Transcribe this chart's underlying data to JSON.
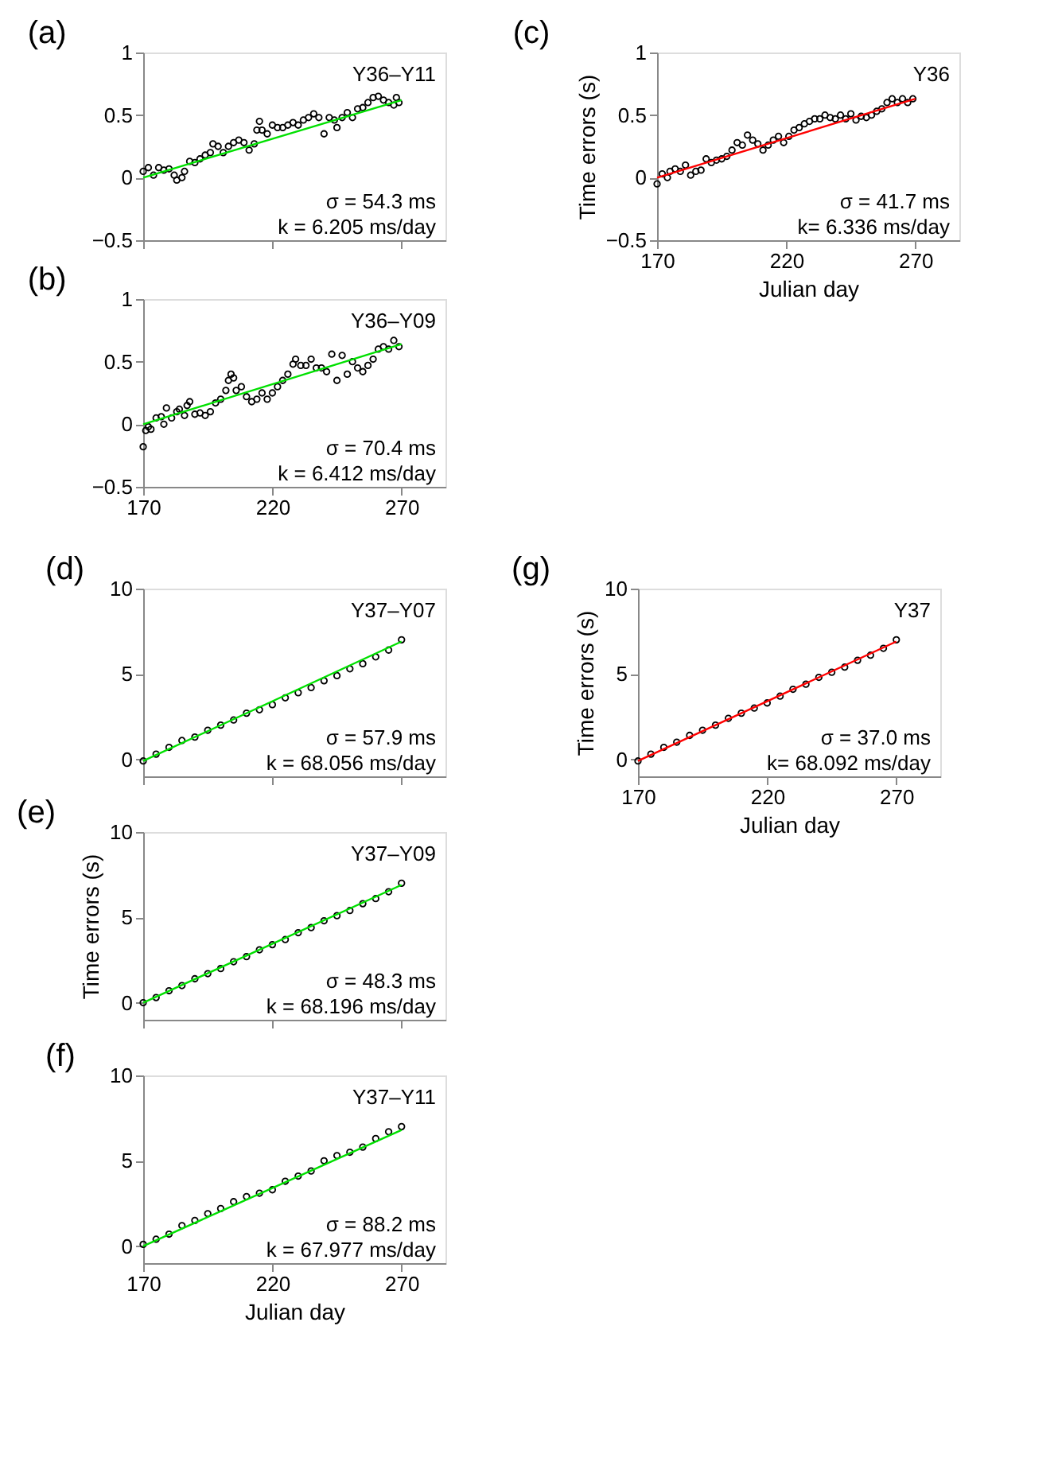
{
  "chart_data": [
    {
      "type": "scatter",
      "title": "(a)",
      "xlim": [
        170,
        287
      ],
      "xticks": [
        170,
        220,
        270
      ],
      "ylim": [
        -0.5,
        1
      ],
      "yticks": [
        -0.5,
        0,
        0.5,
        1
      ],
      "tick_labels": "y",
      "grid": false,
      "annotations": [
        "Y36–Y11",
        "σ = 54.3 ms",
        "k = 6.205 ms/day"
      ],
      "series": [
        {
          "marker": "circle",
          "color": "#000000",
          "x": [
            170,
            172,
            174,
            176,
            178,
            180,
            182,
            183,
            185,
            186,
            188,
            190,
            192,
            194,
            196,
            197,
            199,
            201,
            203,
            205,
            207,
            209,
            211,
            213,
            214,
            215,
            216,
            218,
            220,
            222,
            224,
            226,
            228,
            230,
            232,
            234,
            236,
            238,
            240,
            242,
            244,
            245,
            247,
            249,
            251,
            253,
            255,
            257,
            259,
            261,
            263,
            265,
            267,
            268,
            269
          ],
          "values": [
            0.05,
            0.08,
            0.02,
            0.08,
            0.06,
            0.07,
            0.02,
            -0.02,
            0.0,
            0.05,
            0.13,
            0.12,
            0.15,
            0.18,
            0.2,
            0.27,
            0.25,
            0.2,
            0.25,
            0.28,
            0.3,
            0.28,
            0.22,
            0.27,
            0.38,
            0.45,
            0.38,
            0.35,
            0.42,
            0.4,
            0.4,
            0.42,
            0.44,
            0.42,
            0.46,
            0.48,
            0.51,
            0.48,
            0.35,
            0.48,
            0.46,
            0.4,
            0.48,
            0.52,
            0.48,
            0.55,
            0.56,
            0.6,
            0.64,
            0.65,
            0.62,
            0.6,
            0.58,
            0.64,
            0.6
          ]
        },
        {
          "type": "line",
          "color": "#00e000",
          "x": [
            170,
            270
          ],
          "values": [
            0.0,
            0.62
          ]
        }
      ]
    },
    {
      "type": "scatter",
      "title": "(b)",
      "xlim": [
        170,
        287
      ],
      "xticks": [
        170,
        220,
        270
      ],
      "ylim": [
        -0.5,
        1
      ],
      "yticks": [
        -0.5,
        0,
        0.5,
        1
      ],
      "grid": false,
      "annotations": [
        "Y36–Y09",
        "σ = 70.4 ms",
        "k = 6.412 ms/day"
      ],
      "series": [
        {
          "marker": "circle",
          "color": "#000000",
          "x": [
            170,
            171,
            172,
            173,
            175,
            177,
            178,
            179,
            181,
            183,
            184,
            186,
            187,
            188,
            190,
            192,
            194,
            196,
            198,
            200,
            202,
            203,
            204,
            205,
            206,
            208,
            210,
            212,
            214,
            216,
            218,
            220,
            222,
            224,
            226,
            228,
            229,
            231,
            233,
            235,
            237,
            239,
            241,
            243,
            245,
            247,
            249,
            251,
            253,
            255,
            257,
            259,
            261,
            263,
            265,
            267,
            269
          ],
          "values": [
            -0.18,
            -0.05,
            -0.02,
            -0.04,
            0.05,
            0.06,
            0.0,
            0.13,
            0.05,
            0.1,
            0.12,
            0.07,
            0.15,
            0.18,
            0.08,
            0.09,
            0.07,
            0.1,
            0.17,
            0.2,
            0.27,
            0.35,
            0.4,
            0.37,
            0.27,
            0.3,
            0.22,
            0.18,
            0.2,
            0.25,
            0.2,
            0.25,
            0.3,
            0.35,
            0.4,
            0.48,
            0.52,
            0.47,
            0.47,
            0.52,
            0.45,
            0.45,
            0.42,
            0.56,
            0.35,
            0.55,
            0.4,
            0.5,
            0.45,
            0.42,
            0.47,
            0.52,
            0.6,
            0.62,
            0.6,
            0.67,
            0.62
          ]
        },
        {
          "type": "line",
          "color": "#00e000",
          "x": [
            170,
            270
          ],
          "values": [
            0.0,
            0.64
          ]
        }
      ]
    },
    {
      "type": "scatter",
      "title": "(c)",
      "xlabel": "Julian day",
      "ylabel": "Time errors (s)",
      "xlim": [
        170,
        287
      ],
      "xticks": [
        170,
        220,
        270
      ],
      "ylim": [
        -0.5,
        1
      ],
      "yticks": [
        -0.5,
        0,
        0.5,
        1
      ],
      "grid": false,
      "annotations": [
        "Y36",
        "σ = 41.7 ms",
        "k= 6.336 ms/day"
      ],
      "series": [
        {
          "marker": "circle",
          "color": "#000000",
          "x": [
            170,
            172,
            174,
            175,
            177,
            179,
            181,
            183,
            185,
            187,
            189,
            191,
            193,
            195,
            197,
            199,
            201,
            203,
            205,
            207,
            209,
            211,
            213,
            215,
            217,
            219,
            221,
            223,
            225,
            227,
            229,
            231,
            233,
            235,
            237,
            239,
            241,
            243,
            245,
            247,
            249,
            251,
            253,
            255,
            257,
            259,
            261,
            263,
            265,
            267,
            269
          ],
          "values": [
            -0.05,
            0.03,
            0.0,
            0.05,
            0.07,
            0.05,
            0.1,
            0.02,
            0.05,
            0.06,
            0.15,
            0.12,
            0.14,
            0.15,
            0.17,
            0.22,
            0.28,
            0.26,
            0.34,
            0.3,
            0.27,
            0.22,
            0.26,
            0.3,
            0.33,
            0.28,
            0.33,
            0.38,
            0.4,
            0.43,
            0.45,
            0.47,
            0.47,
            0.5,
            0.48,
            0.47,
            0.5,
            0.47,
            0.51,
            0.46,
            0.49,
            0.48,
            0.5,
            0.53,
            0.55,
            0.6,
            0.63,
            0.6,
            0.63,
            0.6,
            0.63
          ]
        },
        {
          "type": "line",
          "color": "#ff0000",
          "x": [
            170,
            270
          ],
          "values": [
            0.0,
            0.63
          ]
        }
      ]
    },
    {
      "type": "scatter",
      "title": "(d)",
      "xlim": [
        170,
        287
      ],
      "xticks": [
        170,
        220,
        270
      ],
      "ylim": [
        -1,
        10
      ],
      "yticks": [
        0,
        5,
        10
      ],
      "tick_labels": "y",
      "grid": false,
      "annotations": [
        "Y37–Y07",
        "σ = 57.9 ms",
        "k = 68.056 ms/day"
      ],
      "series": [
        {
          "marker": "circle",
          "color": "#000000",
          "x": [
            170,
            175,
            180,
            185,
            190,
            195,
            200,
            205,
            210,
            215,
            220,
            225,
            230,
            235,
            240,
            245,
            250,
            255,
            260,
            265,
            270
          ],
          "values": [
            -0.1,
            0.3,
            0.7,
            1.1,
            1.3,
            1.7,
            2.0,
            2.3,
            2.7,
            2.9,
            3.2,
            3.6,
            3.9,
            4.2,
            4.6,
            4.9,
            5.3,
            5.6,
            6.0,
            6.4,
            7.0
          ]
        },
        {
          "type": "line",
          "color": "#00e000",
          "x": [
            170,
            270
          ],
          "values": [
            -0.1,
            6.9
          ]
        }
      ]
    },
    {
      "type": "scatter",
      "title": "(e)",
      "ylabel": "Time errors (s)",
      "xlim": [
        170,
        287
      ],
      "xticks": [
        170,
        220,
        270
      ],
      "ylim": [
        -1,
        10
      ],
      "yticks": [
        0,
        5,
        10
      ],
      "tick_labels": "y",
      "grid": false,
      "annotations": [
        "Y37–Y09",
        "σ = 48.3 ms",
        "k = 68.196 ms/day"
      ],
      "series": [
        {
          "marker": "circle",
          "color": "#000000",
          "x": [
            170,
            175,
            180,
            185,
            190,
            195,
            200,
            205,
            210,
            215,
            220,
            225,
            230,
            235,
            240,
            245,
            250,
            255,
            260,
            265,
            270
          ],
          "values": [
            0.0,
            0.3,
            0.7,
            1.0,
            1.4,
            1.7,
            2.0,
            2.4,
            2.7,
            3.1,
            3.4,
            3.7,
            4.1,
            4.4,
            4.8,
            5.1,
            5.4,
            5.8,
            6.1,
            6.5,
            7.0
          ]
        },
        {
          "type": "line",
          "color": "#00e000",
          "x": [
            170,
            270
          ],
          "values": [
            0.0,
            6.9
          ]
        }
      ]
    },
    {
      "type": "scatter",
      "title": "(f)",
      "xlabel": "Julian day",
      "xlim": [
        170,
        287
      ],
      "xticks": [
        170,
        220,
        270
      ],
      "ylim": [
        -1,
        10
      ],
      "yticks": [
        0,
        5,
        10
      ],
      "grid": false,
      "annotations": [
        "Y37–Y11",
        "σ = 88.2 ms",
        "k = 67.977 ms/day"
      ],
      "series": [
        {
          "marker": "circle",
          "color": "#000000",
          "x": [
            170,
            175,
            180,
            185,
            190,
            195,
            200,
            205,
            210,
            215,
            220,
            225,
            230,
            235,
            240,
            245,
            250,
            255,
            260,
            265,
            270
          ],
          "values": [
            0.1,
            0.4,
            0.7,
            1.2,
            1.5,
            1.9,
            2.2,
            2.6,
            2.9,
            3.1,
            3.3,
            3.8,
            4.1,
            4.4,
            5.0,
            5.3,
            5.5,
            5.8,
            6.3,
            6.7,
            7.0
          ]
        },
        {
          "type": "line",
          "color": "#00e000",
          "x": [
            170,
            270
          ],
          "values": [
            0.0,
            6.8
          ]
        }
      ]
    },
    {
      "type": "scatter",
      "title": "(g)",
      "xlabel": "Julian day",
      "ylabel": "Time errors (s)",
      "xlim": [
        170,
        287
      ],
      "xticks": [
        170,
        220,
        270
      ],
      "ylim": [
        -1,
        10
      ],
      "yticks": [
        0,
        5,
        10
      ],
      "grid": false,
      "annotations": [
        "Y37",
        "σ = 37.0 ms",
        "k= 68.092 ms/day"
      ],
      "series": [
        {
          "marker": "circle",
          "color": "#000000",
          "x": [
            170,
            175,
            180,
            185,
            190,
            195,
            200,
            205,
            210,
            215,
            220,
            225,
            230,
            235,
            240,
            245,
            250,
            255,
            260,
            265,
            270
          ],
          "values": [
            -0.1,
            0.3,
            0.7,
            1.0,
            1.4,
            1.7,
            2.0,
            2.4,
            2.7,
            3.0,
            3.3,
            3.7,
            4.1,
            4.4,
            4.8,
            5.1,
            5.4,
            5.8,
            6.1,
            6.5,
            7.0
          ]
        },
        {
          "type": "line",
          "color": "#ff0000",
          "x": [
            170,
            270
          ],
          "values": [
            -0.1,
            6.9
          ]
        }
      ]
    }
  ]
}
